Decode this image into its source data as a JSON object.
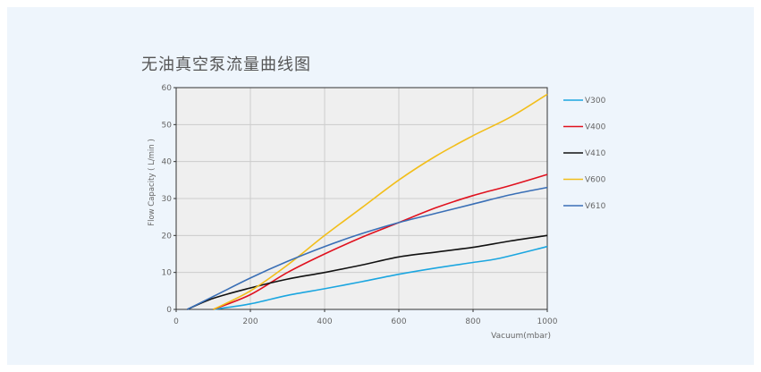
{
  "page": {
    "background": "#ffffff",
    "panel_background": "#eef5fc"
  },
  "chart_data": {
    "type": "line",
    "title": "无油真空泵流量曲线图",
    "xlabel": "Vacuum(mbar)",
    "ylabel": "Flow Capacity ( L/min )",
    "xlim": [
      0,
      1000
    ],
    "ylim": [
      0,
      60
    ],
    "x_ticks": [
      "0",
      "200",
      "400",
      "600",
      "800",
      "1000"
    ],
    "y_ticks": [
      "0",
      "10",
      "20",
      "30",
      "40",
      "50",
      "60"
    ],
    "grid": true,
    "plot_background": "#efefef",
    "grid_color": "#cccccc",
    "legend_position": "right",
    "series": [
      {
        "name": "V300",
        "color": "#1ba6e0",
        "points": [
          [
            100,
            0
          ],
          [
            200,
            1.5
          ],
          [
            300,
            3.8
          ],
          [
            400,
            5.6
          ],
          [
            500,
            7.5
          ],
          [
            600,
            9.5
          ],
          [
            700,
            11.2
          ],
          [
            800,
            12.7
          ],
          [
            870,
            13.8
          ],
          [
            1000,
            17.0
          ]
        ]
      },
      {
        "name": "V400",
        "color": "#e0111e",
        "points": [
          [
            100,
            0
          ],
          [
            200,
            4
          ],
          [
            300,
            10
          ],
          [
            400,
            15
          ],
          [
            500,
            19.5
          ],
          [
            600,
            23.5
          ],
          [
            700,
            27.5
          ],
          [
            800,
            30.8
          ],
          [
            900,
            33.5
          ],
          [
            1000,
            36.5
          ]
        ]
      },
      {
        "name": "V410",
        "color": "#111111",
        "points": [
          [
            30,
            0
          ],
          [
            100,
            3
          ],
          [
            200,
            5.8
          ],
          [
            300,
            8.2
          ],
          [
            400,
            10
          ],
          [
            500,
            12
          ],
          [
            600,
            14.2
          ],
          [
            700,
            15.5
          ],
          [
            800,
            16.8
          ],
          [
            900,
            18.5
          ],
          [
            1000,
            20.0
          ]
        ]
      },
      {
        "name": "V600",
        "color": "#f2be1a",
        "points": [
          [
            100,
            0
          ],
          [
            200,
            5
          ],
          [
            300,
            12
          ],
          [
            400,
            20
          ],
          [
            500,
            27.5
          ],
          [
            600,
            35
          ],
          [
            700,
            41.5
          ],
          [
            800,
            47
          ],
          [
            900,
            52
          ],
          [
            1000,
            58.2
          ]
        ]
      },
      {
        "name": "V610",
        "color": "#3a6fb6",
        "points": [
          [
            30,
            0
          ],
          [
            100,
            3.5
          ],
          [
            200,
            8.5
          ],
          [
            300,
            13
          ],
          [
            400,
            17
          ],
          [
            500,
            20.5
          ],
          [
            600,
            23.5
          ],
          [
            700,
            26
          ],
          [
            800,
            28.5
          ],
          [
            900,
            31
          ],
          [
            1000,
            33.0
          ]
        ]
      }
    ]
  }
}
